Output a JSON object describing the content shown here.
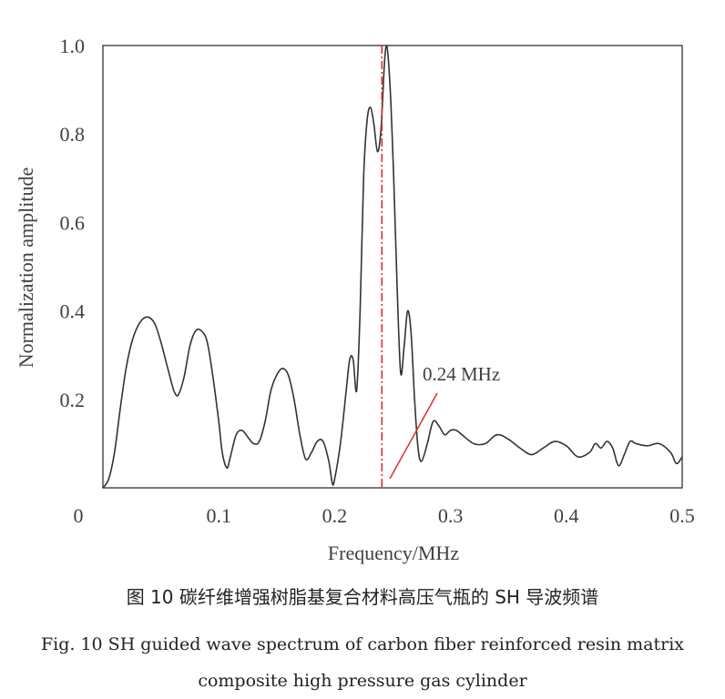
{
  "chart_data": {
    "type": "line",
    "xlabel": "Frequency/MHz",
    "ylabel": "Normalization amplitude",
    "xlim": [
      0,
      0.5
    ],
    "ylim": [
      0,
      1.0
    ],
    "x_ticks": [
      {
        "value": 0,
        "label": "0"
      },
      {
        "value": 0.1,
        "label": "0.1"
      },
      {
        "value": 0.2,
        "label": "0.2"
      },
      {
        "value": 0.3,
        "label": "0.3"
      },
      {
        "value": 0.4,
        "label": "0.4"
      },
      {
        "value": 0.5,
        "label": "0.5"
      }
    ],
    "y_ticks": [
      {
        "value": 0.2,
        "label": "0.2"
      },
      {
        "value": 0.4,
        "label": "0.4"
      },
      {
        "value": 0.6,
        "label": "0.6"
      },
      {
        "value": 0.8,
        "label": "0.8"
      },
      {
        "value": 1.0,
        "label": "1.0"
      }
    ],
    "grid": false,
    "series": [
      {
        "name": "SH guided wave spectrum",
        "color": "#333333",
        "points": [
          [
            0.0,
            0.0
          ],
          [
            0.005,
            0.02
          ],
          [
            0.01,
            0.08
          ],
          [
            0.015,
            0.18
          ],
          [
            0.02,
            0.27
          ],
          [
            0.025,
            0.33
          ],
          [
            0.03,
            0.365
          ],
          [
            0.035,
            0.383
          ],
          [
            0.04,
            0.385
          ],
          [
            0.045,
            0.37
          ],
          [
            0.05,
            0.33
          ],
          [
            0.055,
            0.28
          ],
          [
            0.06,
            0.23
          ],
          [
            0.062,
            0.215
          ],
          [
            0.065,
            0.21
          ],
          [
            0.07,
            0.25
          ],
          [
            0.075,
            0.32
          ],
          [
            0.08,
            0.355
          ],
          [
            0.085,
            0.355
          ],
          [
            0.09,
            0.33
          ],
          [
            0.095,
            0.25
          ],
          [
            0.1,
            0.15
          ],
          [
            0.103,
            0.08
          ],
          [
            0.107,
            0.045
          ],
          [
            0.11,
            0.07
          ],
          [
            0.115,
            0.12
          ],
          [
            0.12,
            0.13
          ],
          [
            0.125,
            0.115
          ],
          [
            0.13,
            0.1
          ],
          [
            0.135,
            0.105
          ],
          [
            0.14,
            0.15
          ],
          [
            0.145,
            0.22
          ],
          [
            0.15,
            0.255
          ],
          [
            0.155,
            0.27
          ],
          [
            0.16,
            0.255
          ],
          [
            0.165,
            0.2
          ],
          [
            0.17,
            0.12
          ],
          [
            0.175,
            0.065
          ],
          [
            0.18,
            0.08
          ],
          [
            0.185,
            0.105
          ],
          [
            0.19,
            0.105
          ],
          [
            0.195,
            0.06
          ],
          [
            0.198,
            0.01
          ],
          [
            0.2,
            0.02
          ],
          [
            0.205,
            0.1
          ],
          [
            0.21,
            0.22
          ],
          [
            0.213,
            0.29
          ],
          [
            0.216,
            0.29
          ],
          [
            0.219,
            0.22
          ],
          [
            0.222,
            0.4
          ],
          [
            0.225,
            0.7
          ],
          [
            0.228,
            0.83
          ],
          [
            0.231,
            0.86
          ],
          [
            0.234,
            0.82
          ],
          [
            0.237,
            0.76
          ],
          [
            0.24,
            0.81
          ],
          [
            0.243,
            0.96
          ],
          [
            0.245,
            1.0
          ],
          [
            0.248,
            0.9
          ],
          [
            0.251,
            0.7
          ],
          [
            0.254,
            0.45
          ],
          [
            0.257,
            0.26
          ],
          [
            0.26,
            0.32
          ],
          [
            0.263,
            0.4
          ],
          [
            0.266,
            0.35
          ],
          [
            0.269,
            0.2
          ],
          [
            0.272,
            0.09
          ],
          [
            0.275,
            0.06
          ],
          [
            0.28,
            0.1
          ],
          [
            0.285,
            0.15
          ],
          [
            0.29,
            0.14
          ],
          [
            0.295,
            0.12
          ],
          [
            0.3,
            0.13
          ],
          [
            0.305,
            0.13
          ],
          [
            0.31,
            0.12
          ],
          [
            0.32,
            0.1
          ],
          [
            0.33,
            0.1
          ],
          [
            0.34,
            0.12
          ],
          [
            0.35,
            0.11
          ],
          [
            0.36,
            0.09
          ],
          [
            0.37,
            0.075
          ],
          [
            0.38,
            0.09
          ],
          [
            0.39,
            0.105
          ],
          [
            0.4,
            0.095
          ],
          [
            0.41,
            0.07
          ],
          [
            0.42,
            0.08
          ],
          [
            0.425,
            0.1
          ],
          [
            0.43,
            0.09
          ],
          [
            0.435,
            0.105
          ],
          [
            0.44,
            0.09
          ],
          [
            0.445,
            0.05
          ],
          [
            0.45,
            0.075
          ],
          [
            0.455,
            0.105
          ],
          [
            0.46,
            0.1
          ],
          [
            0.47,
            0.095
          ],
          [
            0.48,
            0.1
          ],
          [
            0.49,
            0.08
          ],
          [
            0.495,
            0.055
          ],
          [
            0.5,
            0.07
          ]
        ]
      }
    ],
    "marker": {
      "x": 0.24,
      "label": "0.24 MHz",
      "color": "#d9322a"
    }
  },
  "caption": {
    "zh": "图 10   碳纤维增强树脂基复合材料高压气瓶的 SH 导波频谱",
    "en_line1": "Fig. 10   SH guided wave spectrum of carbon fiber reinforced resin matrix",
    "en_line2": "composite high pressure gas cylinder"
  }
}
